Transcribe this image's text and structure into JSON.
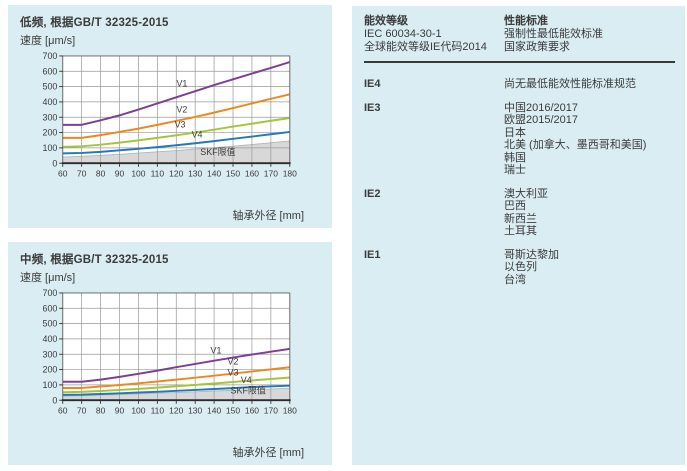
{
  "colors": {
    "panel_bg": "#d9edf2",
    "text": "#3b3b3b",
    "grid": "#999999",
    "plot_border": "#666666",
    "axis": "#2b2b2b",
    "area_fill": "#d8d8d8",
    "area_edge": "#b5b5b5",
    "v1_purple": "#7e3e96",
    "v2_orange": "#f0871e",
    "v3_green": "#a3c53a",
    "v4_blue": "#2278bd"
  },
  "chart_data": [
    {
      "type": "line",
      "title": "低频, 根据GB/T 32325-2015",
      "ylabel": "速度 [μm/s]",
      "xlabel": "轴承外径 [mm]",
      "xlim": [
        60,
        180
      ],
      "ylim": [
        0,
        700
      ],
      "xticks": [
        60,
        70,
        80,
        90,
        100,
        110,
        120,
        130,
        140,
        150,
        160,
        170,
        180
      ],
      "yticks": [
        0,
        100,
        200,
        300,
        400,
        500,
        600,
        700
      ],
      "x": [
        60,
        70,
        80,
        90,
        100,
        110,
        120,
        130,
        140,
        150,
        160,
        170,
        180
      ],
      "series": [
        {
          "name": "V1",
          "color": "#7e3e96",
          "values": [
            250,
            250,
            280,
            312,
            350,
            390,
            430,
            470,
            510,
            548,
            585,
            622,
            660
          ],
          "label_x": 123,
          "label_y": 500
        },
        {
          "name": "V2",
          "color": "#f0871e",
          "values": [
            165,
            165,
            183,
            204,
            226,
            250,
            276,
            302,
            330,
            360,
            390,
            420,
            450
          ],
          "label_x": 123,
          "label_y": 332
        },
        {
          "name": "V3",
          "color": "#a3c53a",
          "values": [
            107,
            110,
            121,
            134,
            149,
            165,
            182,
            200,
            219,
            239,
            258,
            277,
            295
          ],
          "label_x": 122,
          "label_y": 232
        },
        {
          "name": "V4",
          "color": "#2278bd",
          "values": [
            64,
            67,
            74,
            84,
            94,
            105,
            117,
            130,
            144,
            159,
            174,
            189,
            204
          ],
          "label_x": 131,
          "label_y": 168
        }
      ],
      "area": {
        "name": "SKF限值",
        "fill": "#d8d8d8",
        "values": [
          40,
          45,
          51,
          58,
          66,
          74,
          83,
          92,
          101,
          111,
          122,
          133,
          145
        ],
        "label_x": 142,
        "label_y": 52
      },
      "legend_position": "inline-labels",
      "grid": true
    },
    {
      "type": "line",
      "title": "中频, 根据GB/T 32325-2015",
      "ylabel": "速度 [μm/s]",
      "xlabel": "轴承外径 [mm]",
      "xlim": [
        60,
        180
      ],
      "ylim": [
        0,
        700
      ],
      "xticks": [
        60,
        70,
        80,
        90,
        100,
        110,
        120,
        130,
        140,
        150,
        160,
        170,
        180
      ],
      "yticks": [
        0,
        100,
        200,
        300,
        400,
        500,
        600,
        700
      ],
      "x": [
        60,
        70,
        80,
        90,
        100,
        110,
        120,
        130,
        140,
        150,
        160,
        170,
        180
      ],
      "series": [
        {
          "name": "V1",
          "color": "#7e3e96",
          "values": [
            120,
            120,
            134,
            152,
            172,
            193,
            215,
            237,
            258,
            278,
            298,
            317,
            335
          ],
          "label_x": 141,
          "label_y": 305
        },
        {
          "name": "V2",
          "color": "#f0871e",
          "values": [
            80,
            80,
            89,
            99,
            110,
            122,
            134,
            147,
            160,
            174,
            188,
            201,
            215
          ],
          "label_x": 150,
          "label_y": 232
        },
        {
          "name": "V3",
          "color": "#a3c53a",
          "values": [
            52,
            54,
            60,
            67,
            74,
            82,
            91,
            100,
            109,
            119,
            129,
            138,
            148
          ],
          "label_x": 150,
          "label_y": 160
        },
        {
          "name": "V4",
          "color": "#2278bd",
          "values": [
            35,
            36,
            40,
            45,
            50,
            55,
            61,
            67,
            73,
            79,
            85,
            90,
            95
          ],
          "label_x": 157,
          "label_y": 112
        }
      ],
      "area": {
        "name": "SKF限值",
        "fill": "#d8d8d8",
        "values": [
          27,
          29,
          33,
          37,
          41,
          46,
          50,
          55,
          60,
          64,
          69,
          73,
          78
        ],
        "label_x": 158,
        "label_y": 42
      },
      "legend_position": "inline-labels",
      "grid": true
    }
  ],
  "table": {
    "col1": [
      "能效等级",
      "IEC 60034-30-1",
      "全球能效等级IE代码2014"
    ],
    "col2": [
      "性能标准",
      "强制性最低能效标准",
      "国家政策要求"
    ],
    "rows": [
      {
        "grade": "IE4",
        "items": [
          "尚无最低能效性能标准规范"
        ]
      },
      {
        "grade": "IE3",
        "items": [
          "中国2016/2017",
          "欧盟2015/2017",
          "日本",
          "北美 (加拿大、墨西哥和美国)",
          "韩国",
          "瑞士"
        ]
      },
      {
        "grade": "IE2",
        "items": [
          "澳大利亚",
          "巴西",
          "新西兰",
          "土耳其"
        ]
      },
      {
        "grade": "IE1",
        "items": [
          "哥斯达黎加",
          "以色列",
          "台湾"
        ]
      }
    ]
  }
}
